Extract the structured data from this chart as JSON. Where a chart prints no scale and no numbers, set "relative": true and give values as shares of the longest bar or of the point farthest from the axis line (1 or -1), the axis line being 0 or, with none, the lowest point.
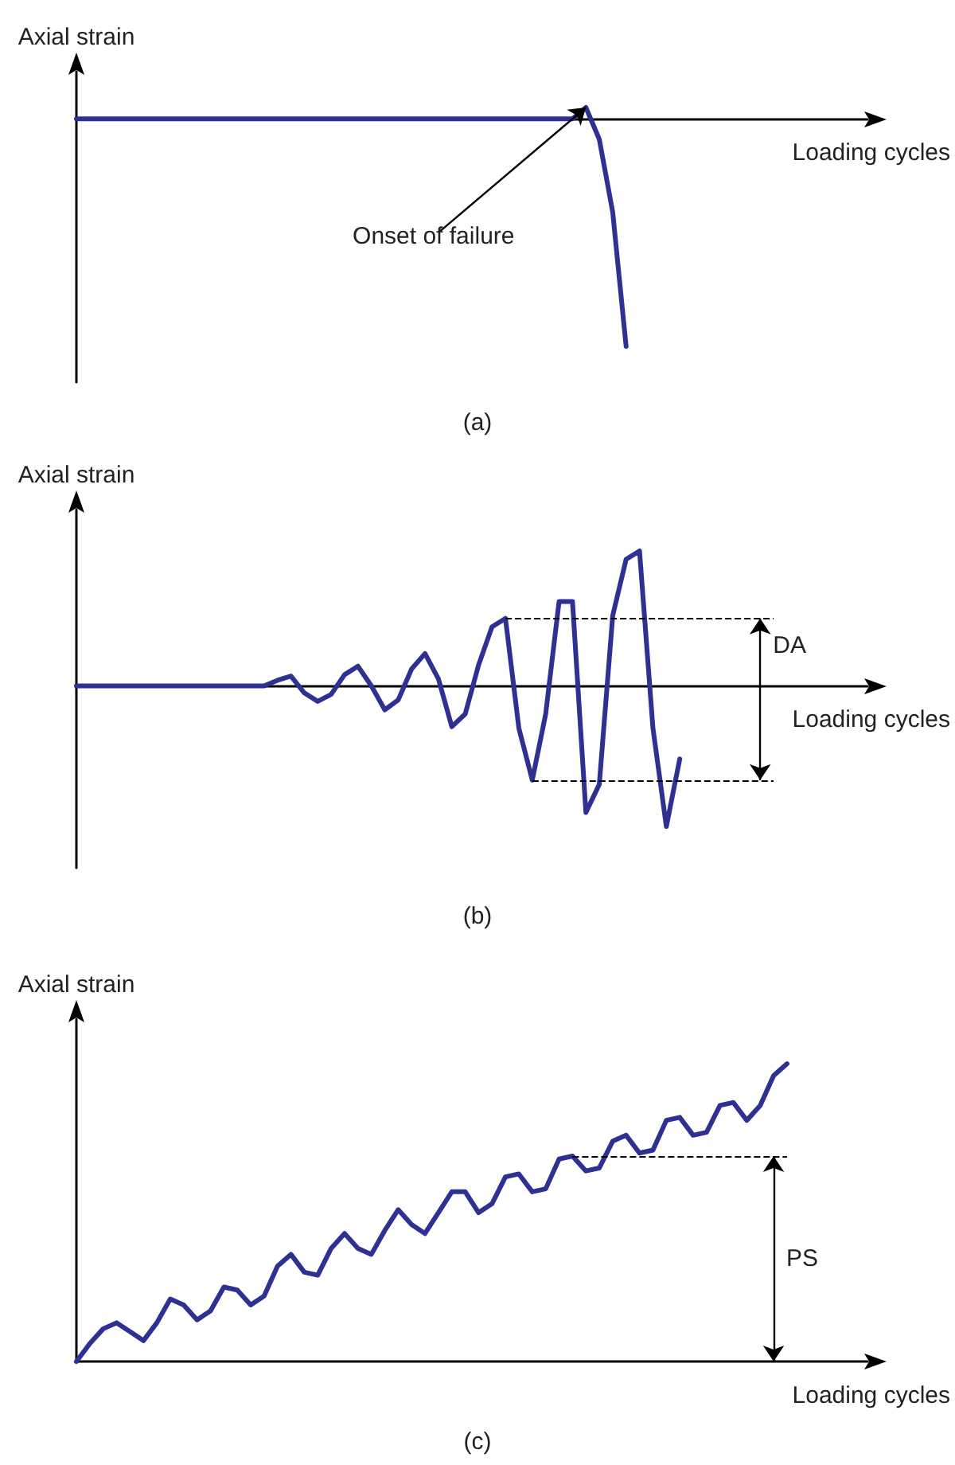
{
  "chart_data": [
    {
      "type": "line",
      "title": "(a)",
      "xlabel": "Loading cycles",
      "ylabel": "Axial strain",
      "relative": true,
      "grid": false,
      "legend": false,
      "tick_labels": false,
      "marker": "none",
      "line_style": "solid",
      "categories": [
        null,
        null,
        null,
        null,
        null,
        null,
        null,
        null,
        null,
        null,
        null,
        null,
        null,
        null,
        null,
        null,
        null,
        null,
        null,
        null,
        null,
        null,
        null,
        null,
        null,
        null,
        null,
        null,
        null,
        null,
        null,
        null,
        null,
        null,
        null,
        null,
        null,
        null,
        null,
        null,
        null,
        null,
        null,
        null,
        null,
        null,
        null,
        null,
        null,
        null,
        null,
        null,
        null,
        null,
        null,
        null,
        null,
        null,
        null,
        null
      ],
      "series": [
        {
          "color": "#2e3192",
          "values": [
            0,
            0,
            0,
            0,
            0,
            0,
            0,
            0,
            0,
            0,
            0,
            0,
            0,
            0,
            0,
            0,
            0,
            0,
            0,
            0,
            0,
            0,
            0,
            0,
            0,
            0,
            0,
            0,
            0,
            0,
            0,
            0,
            0,
            0,
            0,
            0,
            0,
            0,
            0.05,
            -0.09,
            -0.41,
            -1,
            null,
            null,
            null,
            null,
            null,
            null,
            null,
            null,
            null,
            null,
            null,
            null,
            null,
            null,
            null,
            null,
            null,
            null
          ]
        }
      ],
      "annotations": [
        "Onset of failure"
      ]
    },
    {
      "type": "line",
      "title": "(b)",
      "xlabel": "Loading cycles",
      "ylabel": "Axial strain",
      "relative": true,
      "grid": false,
      "legend": false,
      "tick_labels": false,
      "marker": "none",
      "line_style": "solid",
      "categories": [
        null,
        null,
        null,
        null,
        null,
        null,
        null,
        null,
        null,
        null,
        null,
        null,
        null,
        null,
        null,
        null,
        null,
        null,
        null,
        null,
        null,
        null,
        null,
        null,
        null,
        null,
        null,
        null,
        null,
        null,
        null,
        null,
        null,
        null,
        null,
        null,
        null,
        null,
        null,
        null,
        null,
        null,
        null,
        null,
        null,
        null,
        null,
        null,
        null,
        null,
        null,
        null,
        null,
        null,
        null,
        null,
        null,
        null,
        null,
        null
      ],
      "series": [
        {
          "color": "#2e3192",
          "values": [
            0,
            0,
            0,
            0,
            0,
            0,
            0,
            0,
            0,
            0,
            0,
            0,
            0,
            0,
            0,
            0.04,
            0.07,
            -0.05,
            -0.11,
            -0.06,
            0.08,
            0.14,
            0,
            -0.17,
            -0.1,
            0.12,
            0.23,
            0.05,
            -0.29,
            -0.2,
            0.15,
            0.42,
            0.48,
            -0.3,
            -0.67,
            -0.2,
            0.6,
            0.6,
            -0.9,
            -0.7,
            0.5,
            0.9,
            0.96,
            -0.3,
            -1,
            -0.52,
            null,
            null,
            null,
            null,
            null,
            null,
            null,
            null,
            null,
            null,
            null,
            null,
            null,
            null
          ]
        }
      ],
      "ref_lines": [
        {
          "axis": "y",
          "value": 0.48,
          "line_style": "dashed",
          "color": "#000000"
        },
        {
          "axis": "y",
          "value": -0.67,
          "line_style": "dashed",
          "color": "#000000"
        }
      ],
      "annotations": [
        "DA"
      ]
    },
    {
      "type": "line",
      "title": "(c)",
      "xlabel": "Loading cycles",
      "ylabel": "Axial strain",
      "relative": true,
      "grid": false,
      "legend": false,
      "tick_labels": false,
      "marker": "none",
      "line_style": "solid",
      "categories": [
        null,
        null,
        null,
        null,
        null,
        null,
        null,
        null,
        null,
        null,
        null,
        null,
        null,
        null,
        null,
        null,
        null,
        null,
        null,
        null,
        null,
        null,
        null,
        null,
        null,
        null,
        null,
        null,
        null,
        null,
        null,
        null,
        null,
        null,
        null,
        null,
        null,
        null,
        null,
        null,
        null,
        null,
        null,
        null,
        null,
        null,
        null,
        null,
        null,
        null,
        null,
        null,
        null,
        null,
        null,
        null,
        null,
        null,
        null,
        null
      ],
      "series": [
        {
          "color": "#2e3192",
          "values": [
            0,
            0.06,
            0.11,
            0.13,
            0.1,
            0.07,
            0.13,
            0.21,
            0.19,
            0.14,
            0.17,
            0.25,
            0.24,
            0.19,
            0.22,
            0.32,
            0.36,
            0.3,
            0.29,
            0.38,
            0.43,
            0.38,
            0.36,
            0.44,
            0.51,
            0.46,
            0.43,
            0.5,
            0.57,
            0.57,
            0.5,
            0.53,
            0.62,
            0.63,
            0.57,
            0.58,
            0.68,
            0.69,
            0.64,
            0.65,
            0.74,
            0.76,
            0.7,
            0.71,
            0.81,
            0.82,
            0.76,
            0.77,
            0.86,
            0.87,
            0.81,
            0.86,
            0.96,
            1,
            null,
            null,
            null,
            null,
            null,
            null
          ]
        }
      ],
      "ref_lines": [
        {
          "axis": "y",
          "value": 0.69,
          "line_style": "dashed",
          "color": "#000000"
        }
      ],
      "annotations": [
        "PS"
      ]
    }
  ]
}
